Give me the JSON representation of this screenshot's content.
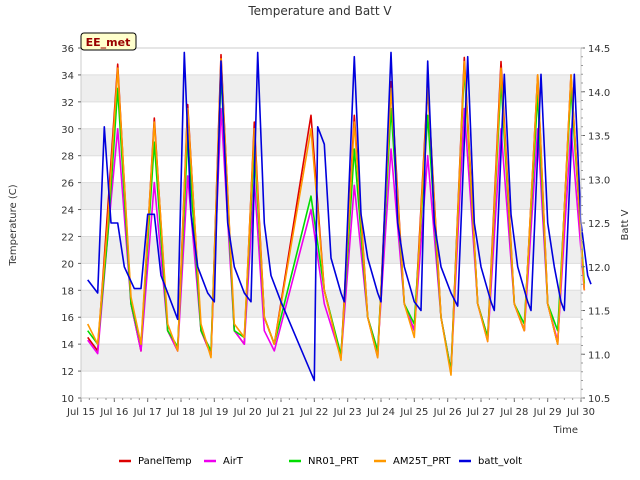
{
  "chart_data": {
    "type": "line",
    "title": "Temperature and Batt V",
    "xlabel": "Time",
    "ylabel": "Temperature (C)",
    "y2label": "Batt V",
    "badge": "EE_met",
    "xlim": [
      15,
      30
    ],
    "ylim": [
      10,
      36
    ],
    "y2lim": [
      10.5,
      14.5
    ],
    "x_ticks": [
      15,
      16,
      17,
      18,
      19,
      20,
      21,
      22,
      23,
      24,
      25,
      26,
      27,
      28,
      29,
      30
    ],
    "x_tick_labels": [
      "Jul 15",
      "Jul 16",
      "Jul 17",
      "Jul 18",
      "Jul 19",
      "Jul 20",
      "Jul 21",
      "Jul 22",
      "Jul 23",
      "Jul 24",
      "Jul 25",
      "Jul 26",
      "Jul 27",
      "Jul 28",
      "Jul 29",
      "Jul 30"
    ],
    "y_ticks": [
      10,
      12,
      14,
      16,
      18,
      20,
      22,
      24,
      26,
      28,
      30,
      32,
      34,
      36
    ],
    "y2_ticks": [
      10.5,
      11.0,
      11.5,
      12.0,
      12.5,
      13.0,
      13.5,
      14.0,
      14.5
    ],
    "y2_tick_labels": [
      "10.5",
      "11.0",
      "11.5",
      "12.0",
      "12.5",
      "13.0",
      "13.5",
      "14.0",
      "14.5"
    ],
    "grid": "horizontal bands",
    "legend_position": "bottom",
    "series": [
      {
        "name": "PanelTemp",
        "color": "#dd0000",
        "axis": "left",
        "points": [
          [
            15.2,
            14.5
          ],
          [
            15.5,
            13.5
          ],
          [
            15.8,
            24
          ],
          [
            16.1,
            34.8
          ],
          [
            16.5,
            17
          ],
          [
            16.8,
            13.5
          ],
          [
            17.2,
            30.8
          ],
          [
            17.6,
            15
          ],
          [
            17.9,
            13.5
          ],
          [
            18.2,
            31.8
          ],
          [
            18.6,
            15
          ],
          [
            18.9,
            13.2
          ],
          [
            19.2,
            35.5
          ],
          [
            19.6,
            15
          ],
          [
            19.9,
            14
          ],
          [
            20.2,
            30.5
          ],
          [
            20.5,
            16
          ],
          [
            20.8,
            14
          ],
          [
            21.9,
            31
          ],
          [
            22.3,
            18
          ],
          [
            22.8,
            13
          ],
          [
            23.2,
            31
          ],
          [
            23.6,
            16
          ],
          [
            23.9,
            13
          ],
          [
            24.3,
            33.5
          ],
          [
            24.7,
            17
          ],
          [
            25.0,
            15
          ],
          [
            25.4,
            33.3
          ],
          [
            25.8,
            16
          ],
          [
            26.1,
            12
          ],
          [
            26.5,
            35.3
          ],
          [
            26.9,
            17
          ],
          [
            27.2,
            14.5
          ],
          [
            27.6,
            35
          ],
          [
            28.0,
            17
          ],
          [
            28.3,
            15
          ],
          [
            28.7,
            34
          ],
          [
            29.0,
            17
          ],
          [
            29.3,
            14
          ],
          [
            29.7,
            34
          ],
          [
            30.1,
            18
          ]
        ]
      },
      {
        "name": "AirT",
        "color": "#ee00ee",
        "axis": "left",
        "points": [
          [
            15.2,
            14.3
          ],
          [
            15.5,
            13.3
          ],
          [
            15.8,
            22
          ],
          [
            16.1,
            30
          ],
          [
            16.5,
            17
          ],
          [
            16.8,
            13.5
          ],
          [
            17.2,
            26
          ],
          [
            17.6,
            15
          ],
          [
            17.9,
            13.5
          ],
          [
            18.2,
            26.5
          ],
          [
            18.6,
            15
          ],
          [
            18.9,
            13.3
          ],
          [
            19.2,
            31.5
          ],
          [
            19.6,
            15
          ],
          [
            19.9,
            14
          ],
          [
            20.2,
            26.2
          ],
          [
            20.5,
            15
          ],
          [
            20.8,
            13.5
          ],
          [
            21.9,
            24
          ],
          [
            22.3,
            17
          ],
          [
            22.8,
            13
          ],
          [
            23.2,
            25.8
          ],
          [
            23.6,
            16
          ],
          [
            23.9,
            13.5
          ],
          [
            24.3,
            28.5
          ],
          [
            24.7,
            17
          ],
          [
            25.0,
            15
          ],
          [
            25.4,
            28
          ],
          [
            25.8,
            16
          ],
          [
            26.1,
            12
          ],
          [
            26.5,
            31.5
          ],
          [
            26.9,
            17
          ],
          [
            27.2,
            14.2
          ],
          [
            27.6,
            30
          ],
          [
            28.0,
            17
          ],
          [
            28.3,
            15
          ],
          [
            28.7,
            30
          ],
          [
            29.0,
            17
          ],
          [
            29.3,
            14.2
          ],
          [
            29.7,
            30
          ],
          [
            30.1,
            18
          ]
        ]
      },
      {
        "name": "NR01_PRT",
        "color": "#00dd00",
        "axis": "left",
        "points": [
          [
            15.2,
            15
          ],
          [
            15.5,
            14
          ],
          [
            15.8,
            22
          ],
          [
            16.1,
            33
          ],
          [
            16.5,
            17
          ],
          [
            16.8,
            14
          ],
          [
            17.2,
            29
          ],
          [
            17.6,
            15
          ],
          [
            17.9,
            13.8
          ],
          [
            18.2,
            29.5
          ],
          [
            18.6,
            15
          ],
          [
            18.9,
            13.5
          ],
          [
            19.2,
            34
          ],
          [
            19.6,
            15
          ],
          [
            19.9,
            14.5
          ],
          [
            20.2,
            28.8
          ],
          [
            20.5,
            16
          ],
          [
            20.8,
            14
          ],
          [
            21.9,
            25
          ],
          [
            22.3,
            18
          ],
          [
            22.8,
            13.2
          ],
          [
            23.2,
            28.5
          ],
          [
            23.6,
            16
          ],
          [
            23.9,
            13.5
          ],
          [
            24.3,
            31.5
          ],
          [
            24.7,
            17
          ],
          [
            25.0,
            15.5
          ],
          [
            25.4,
            31
          ],
          [
            25.8,
            16
          ],
          [
            26.1,
            12
          ],
          [
            26.5,
            34.5
          ],
          [
            26.9,
            17
          ],
          [
            27.2,
            14.5
          ],
          [
            27.6,
            33.5
          ],
          [
            28.0,
            17
          ],
          [
            28.3,
            15.5
          ],
          [
            28.7,
            32.5
          ],
          [
            29.0,
            17
          ],
          [
            29.3,
            15
          ],
          [
            29.7,
            33
          ],
          [
            30.1,
            18.5
          ]
        ]
      },
      {
        "name": "AM25T_PRT",
        "color": "#ff9900",
        "axis": "left",
        "points": [
          [
            15.2,
            15.5
          ],
          [
            15.5,
            14
          ],
          [
            15.8,
            23
          ],
          [
            16.1,
            34.5
          ],
          [
            16.5,
            17.5
          ],
          [
            16.8,
            14
          ],
          [
            17.2,
            30.5
          ],
          [
            17.6,
            15.5
          ],
          [
            17.9,
            13.5
          ],
          [
            18.2,
            31.5
          ],
          [
            18.6,
            15.5
          ],
          [
            18.9,
            13
          ],
          [
            19.2,
            35.2
          ],
          [
            19.6,
            15.5
          ],
          [
            19.9,
            14.5
          ],
          [
            20.2,
            30
          ],
          [
            20.5,
            16
          ],
          [
            20.8,
            14
          ],
          [
            21.9,
            30
          ],
          [
            22.3,
            18
          ],
          [
            22.8,
            12.8
          ],
          [
            23.2,
            30.5
          ],
          [
            23.6,
            16
          ],
          [
            23.9,
            13
          ],
          [
            24.3,
            33
          ],
          [
            24.7,
            17
          ],
          [
            25.0,
            14.5
          ],
          [
            25.4,
            33
          ],
          [
            25.8,
            16
          ],
          [
            26.1,
            11.7
          ],
          [
            26.5,
            35
          ],
          [
            26.9,
            17
          ],
          [
            27.2,
            14.2
          ],
          [
            27.6,
            34.5
          ],
          [
            28.0,
            17
          ],
          [
            28.3,
            15
          ],
          [
            28.7,
            34
          ],
          [
            29.0,
            17
          ],
          [
            29.3,
            14
          ],
          [
            29.7,
            34
          ],
          [
            30.1,
            18
          ]
        ]
      },
      {
        "name": "batt_volt",
        "color": "#0000dd",
        "axis": "right",
        "points": [
          [
            15.2,
            11.85
          ],
          [
            15.5,
            11.7
          ],
          [
            15.7,
            13.6
          ],
          [
            15.9,
            12.5
          ],
          [
            16.1,
            12.5
          ],
          [
            16.3,
            12.0
          ],
          [
            16.6,
            11.75
          ],
          [
            16.8,
            11.75
          ],
          [
            17.0,
            12.6
          ],
          [
            17.2,
            12.6
          ],
          [
            17.4,
            11.9
          ],
          [
            17.6,
            11.7
          ],
          [
            17.9,
            11.4
          ],
          [
            18.1,
            14.45
          ],
          [
            18.3,
            12.6
          ],
          [
            18.5,
            12.0
          ],
          [
            18.8,
            11.7
          ],
          [
            19.0,
            11.6
          ],
          [
            19.2,
            14.35
          ],
          [
            19.4,
            12.5
          ],
          [
            19.6,
            12.0
          ],
          [
            19.9,
            11.7
          ],
          [
            20.1,
            11.6
          ],
          [
            20.3,
            14.45
          ],
          [
            20.5,
            12.5
          ],
          [
            20.7,
            11.9
          ],
          [
            21.0,
            11.6
          ],
          [
            22.0,
            10.7
          ],
          [
            22.1,
            13.6
          ],
          [
            22.3,
            13.4
          ],
          [
            22.5,
            12.1
          ],
          [
            22.8,
            11.7
          ],
          [
            22.9,
            11.6
          ],
          [
            23.2,
            14.4
          ],
          [
            23.4,
            12.6
          ],
          [
            23.6,
            12.1
          ],
          [
            23.9,
            11.7
          ],
          [
            24.0,
            11.6
          ],
          [
            24.3,
            14.45
          ],
          [
            24.5,
            12.5
          ],
          [
            24.7,
            12.0
          ],
          [
            25.0,
            11.6
          ],
          [
            25.2,
            11.5
          ],
          [
            25.4,
            14.35
          ],
          [
            25.6,
            12.5
          ],
          [
            25.8,
            12.0
          ],
          [
            26.1,
            11.7
          ],
          [
            26.3,
            11.55
          ],
          [
            26.6,
            14.4
          ],
          [
            26.8,
            12.5
          ],
          [
            27.0,
            12.0
          ],
          [
            27.3,
            11.6
          ],
          [
            27.4,
            11.5
          ],
          [
            27.7,
            14.2
          ],
          [
            27.9,
            12.6
          ],
          [
            28.1,
            12.0
          ],
          [
            28.4,
            11.6
          ],
          [
            28.5,
            11.5
          ],
          [
            28.8,
            14.2
          ],
          [
            29.0,
            12.5
          ],
          [
            29.2,
            12.0
          ],
          [
            29.4,
            11.6
          ],
          [
            29.5,
            11.5
          ],
          [
            29.8,
            14.2
          ],
          [
            30.0,
            12.5
          ],
          [
            30.2,
            11.9
          ],
          [
            30.3,
            11.8
          ]
        ]
      }
    ]
  }
}
